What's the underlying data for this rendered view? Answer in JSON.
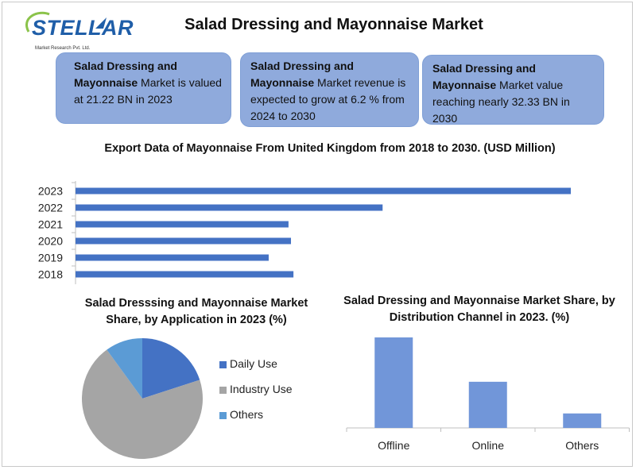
{
  "brand": {
    "name": "STELLAR",
    "tagline": "Market Research Pvt. Ltd."
  },
  "title": "Salad Dressing and Mayonnaise Market",
  "stat_boxes": [
    {
      "bold": "Salad Dressing and Mayonnaise",
      "text": " Market is valued at 21.22 BN in 2023"
    },
    {
      "bold": "Salad Dressing and Mayonnaise",
      "text": " Market revenue is expected to grow at 6.2 % from 2024 to 2030"
    },
    {
      "bold": "Salad Dressing and Mayonnaise",
      "text": " Market value reaching nearly 32.33 BN in 2030"
    }
  ],
  "chart_data": [
    {
      "type": "bar",
      "orientation": "horizontal",
      "title": "Export Data of Mayonnaise From United Kingdom from 2018 to 2030. (USD Million)",
      "categories": [
        "2023",
        "2022",
        "2021",
        "2020",
        "2019",
        "2018"
      ],
      "values": [
        100,
        62,
        43,
        43.5,
        39,
        44
      ],
      "color": "#4472c4",
      "xlim": [
        0,
        100
      ]
    },
    {
      "type": "pie",
      "title": "Salad Dresssing and Mayonnaise Market Share, by Application in 2023 (%)",
      "labels": [
        "Daily Use",
        "Industry Use",
        "Others"
      ],
      "values": [
        20,
        70,
        10
      ],
      "colors": [
        "#4472c4",
        "#a5a5a5",
        "#5b9bd5"
      ],
      "legend": "right"
    },
    {
      "type": "bar",
      "title": "Salad Dressing and Mayonnaise Market Share, by Distribution Channel in 2023. (%)",
      "categories": [
        "Offline",
        "Online",
        "Others"
      ],
      "values": [
        100,
        51,
        16
      ],
      "color": "#7196d9",
      "ylim": [
        0,
        100
      ]
    }
  ]
}
